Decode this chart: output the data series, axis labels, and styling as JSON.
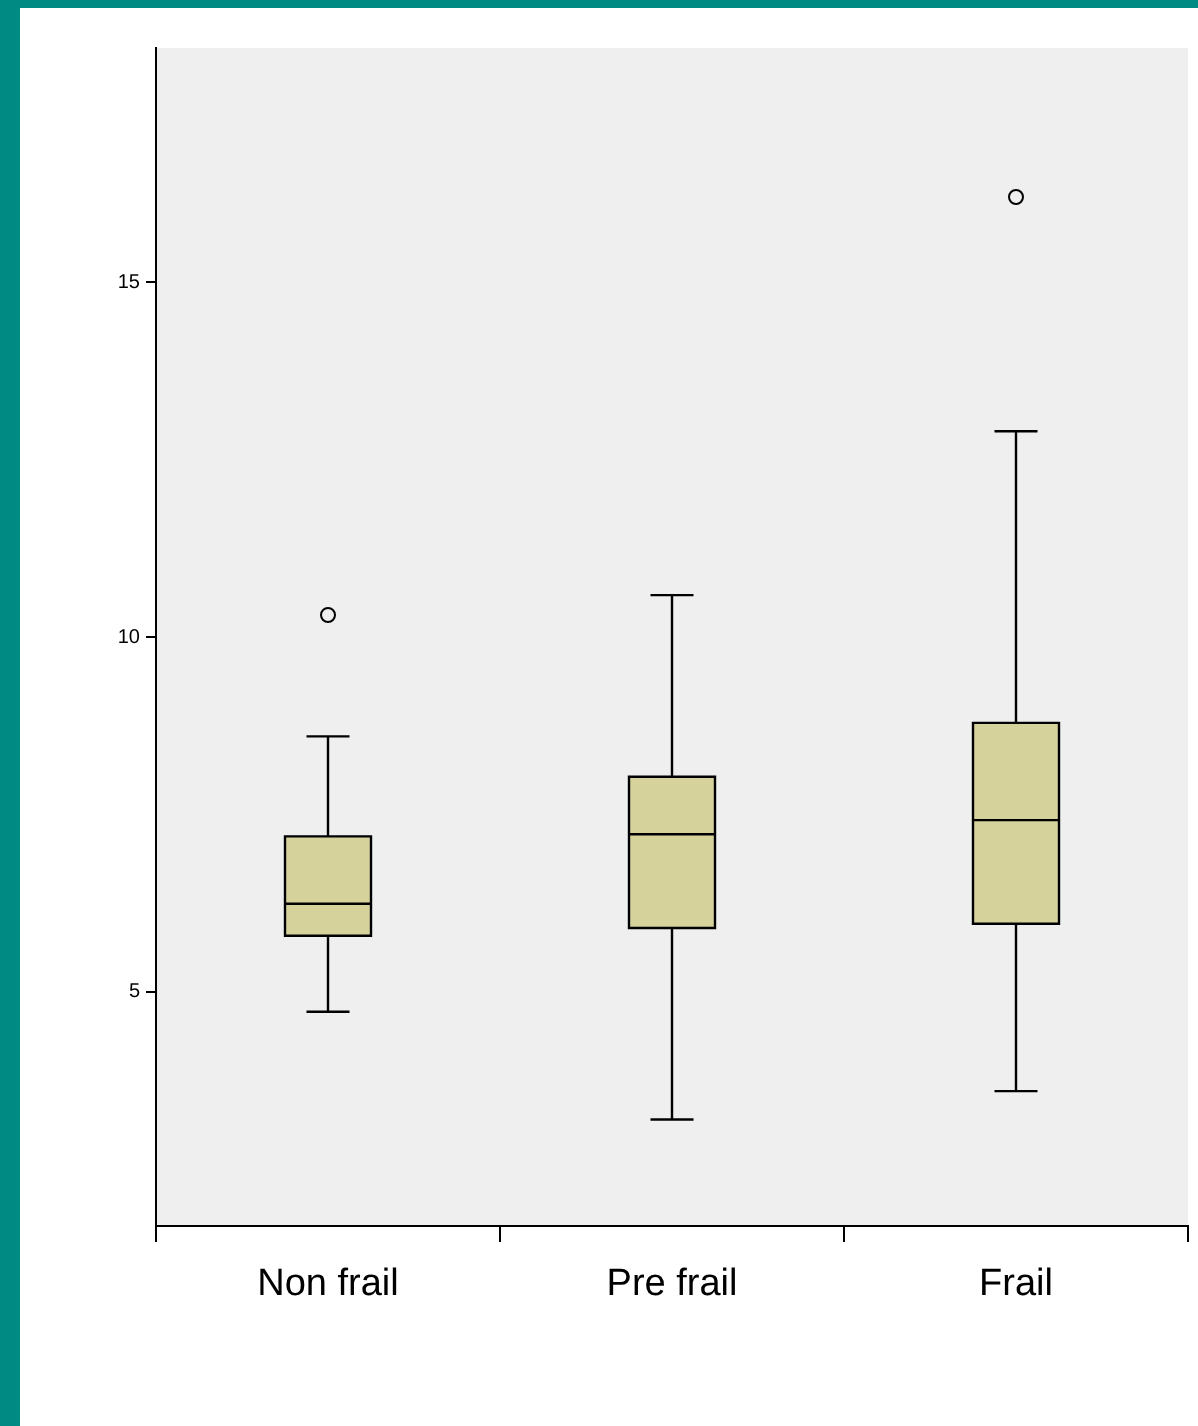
{
  "chart_data": {
    "type": "box",
    "categories": [
      "Non frail",
      "Pre frail",
      "Frail"
    ],
    "color": "#d6d29c",
    "boxes": [
      {
        "low": 4.72,
        "q1": 5.79,
        "median": 6.24,
        "q3": 7.19,
        "high": 8.6,
        "outliers": [
          10.31
        ]
      },
      {
        "low": 3.2,
        "q1": 5.9,
        "median": 7.22,
        "q3": 8.03,
        "high": 10.59
      },
      {
        "low": 3.6,
        "q1": 5.96,
        "median": 7.42,
        "q3": 8.79,
        "high": 12.9,
        "outliers": [
          16.2
        ]
      }
    ],
    "ylim": [
      1.7,
      18.3
    ],
    "yticks": [
      5,
      10,
      15
    ],
    "grid": false,
    "legend": false
  }
}
